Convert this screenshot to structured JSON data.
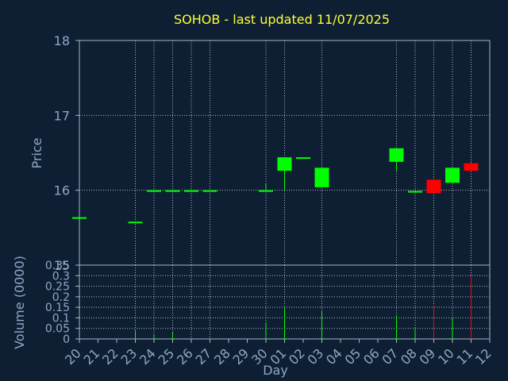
{
  "chart_data": [
    {
      "type": "candlestick",
      "title": "SOHOB - last updated 11/07/2025",
      "ylabel": "Price",
      "ylim": [
        15,
        18
      ],
      "yticks": [
        "15",
        "16",
        "17",
        "18"
      ],
      "grid": true,
      "colors": {
        "up": "#00ff00",
        "down": "#ff0000"
      },
      "categories": [
        "20",
        "21",
        "22",
        "23",
        "24",
        "25",
        "26",
        "27",
        "28",
        "29",
        "30",
        "01",
        "02",
        "03",
        "04",
        "05",
        "06",
        "07",
        "08",
        "09",
        "10",
        "11",
        "12"
      ],
      "candles": [
        {
          "day": "20",
          "open": 15.64,
          "close": 15.64,
          "high": 15.64,
          "low": 15.64,
          "color": "up"
        },
        {
          "day": "23",
          "open": 15.58,
          "close": 15.58,
          "high": 15.58,
          "low": 15.58,
          "color": "up"
        },
        {
          "day": "24",
          "open": 16.0,
          "close": 16.0,
          "high": 16.0,
          "low": 16.0,
          "color": "up"
        },
        {
          "day": "25",
          "open": 16.0,
          "close": 16.0,
          "high": 16.0,
          "low": 16.0,
          "color": "up"
        },
        {
          "day": "26",
          "open": 16.0,
          "close": 16.0,
          "high": 16.0,
          "low": 16.0,
          "color": "up"
        },
        {
          "day": "27",
          "open": 16.0,
          "close": 16.0,
          "high": 16.0,
          "low": 16.0,
          "color": "up"
        },
        {
          "day": "30",
          "open": 16.0,
          "close": 16.0,
          "high": 16.08,
          "low": 16.0,
          "color": "up"
        },
        {
          "day": "01",
          "open": 16.26,
          "close": 16.44,
          "high": 16.44,
          "low": 16.0,
          "color": "up"
        },
        {
          "day": "02",
          "open": 16.44,
          "close": 16.44,
          "high": 16.44,
          "low": 16.44,
          "color": "up"
        },
        {
          "day": "03",
          "open": 16.04,
          "close": 16.3,
          "high": 16.3,
          "low": 16.04,
          "color": "up"
        },
        {
          "day": "07",
          "open": 16.38,
          "close": 16.56,
          "high": 16.56,
          "low": 16.26,
          "color": "up"
        },
        {
          "day": "08",
          "open": 15.99,
          "close": 15.99,
          "high": 15.99,
          "low": 15.99,
          "color": "up"
        },
        {
          "day": "09",
          "open": 16.14,
          "close": 15.96,
          "high": 16.18,
          "low": 15.96,
          "color": "down"
        },
        {
          "day": "10",
          "open": 16.1,
          "close": 16.3,
          "high": 16.3,
          "low": 16.1,
          "color": "up"
        },
        {
          "day": "11",
          "open": 16.36,
          "close": 16.26,
          "high": 16.36,
          "low": 16.26,
          "color": "down"
        }
      ]
    },
    {
      "type": "bar",
      "ylabel": "Volume (0000)",
      "xlabel": "Day",
      "ylim": [
        0,
        0.35
      ],
      "yticks": [
        "0",
        "0.05",
        "0.1",
        "0.15",
        "0.2",
        "0.25",
        "0.3",
        "0.35"
      ],
      "grid": true,
      "colors": {
        "up": "#00ff00",
        "down": "#ff0000"
      },
      "categories": [
        "20",
        "21",
        "22",
        "23",
        "24",
        "25",
        "26",
        "27",
        "28",
        "29",
        "30",
        "01",
        "02",
        "03",
        "04",
        "05",
        "06",
        "07",
        "08",
        "09",
        "10",
        "11",
        "12"
      ],
      "bars": [
        {
          "day": "23",
          "value": 0.04,
          "color": "up"
        },
        {
          "day": "24",
          "value": 0.02,
          "color": "up"
        },
        {
          "day": "25",
          "value": 0.03,
          "color": "up"
        },
        {
          "day": "30",
          "value": 0.08,
          "color": "up"
        },
        {
          "day": "01",
          "value": 0.15,
          "color": "up"
        },
        {
          "day": "03",
          "value": 0.13,
          "color": "up"
        },
        {
          "day": "07",
          "value": 0.11,
          "color": "up"
        },
        {
          "day": "08",
          "value": 0.05,
          "color": "up"
        },
        {
          "day": "09",
          "value": 0.16,
          "color": "down"
        },
        {
          "day": "10",
          "value": 0.1,
          "color": "up"
        },
        {
          "day": "11",
          "value": 0.3,
          "color": "down"
        }
      ]
    }
  ]
}
